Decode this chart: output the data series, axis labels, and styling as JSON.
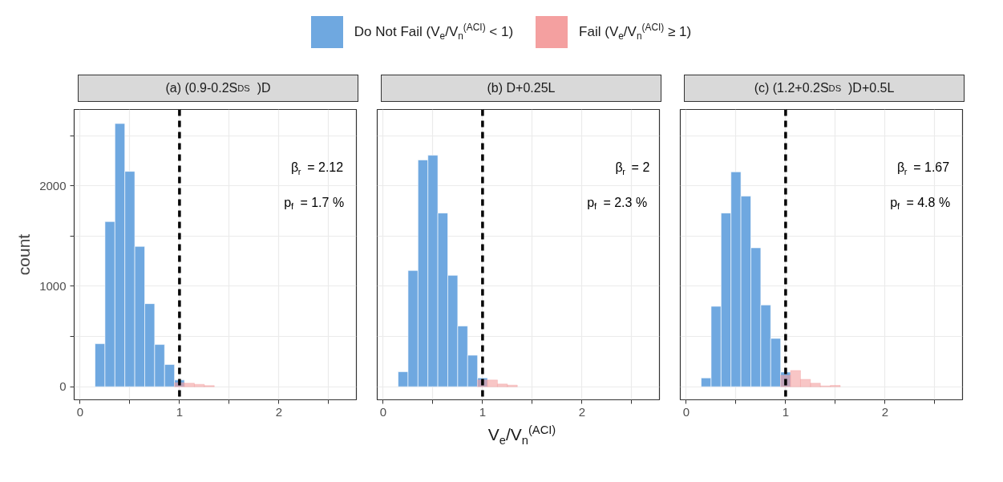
{
  "chart_data": [
    {
      "type": "histogram",
      "title": "(a) (0.9-0.2S$_{DS}$ )D",
      "ylabel": "count",
      "legend": "top",
      "bins": [
        0.15,
        0.25,
        0.35,
        0.45,
        0.55,
        0.65,
        0.75,
        0.85,
        0.95,
        1.05,
        1.15,
        1.25,
        1.35,
        1.45,
        1.55
      ],
      "series": [
        {
          "name": "Do Not Fail (V$_{e}$/V$_{n}$$^{(ACI)}$ < 1)",
          "color": "#6fa8e0",
          "values": [
            428,
            1644,
            2620,
            2144,
            1397,
            827,
            420,
            221,
            67,
            null,
            null,
            null,
            null,
            null
          ]
        },
        {
          "name": "Fail (V$_{e}$/V$_{n}$$^{(ACI)}$ ≥ 1)",
          "color": "#f4a0a0",
          "values": [
            null,
            null,
            null,
            null,
            null,
            null,
            null,
            null,
            40,
            35,
            24,
            11,
            null,
            null
          ]
        }
      ],
      "xlim": [
        -0.06,
        2.78
      ],
      "ylim": [
        -130,
        2760
      ],
      "xticks": [
        0,
        {
          "value": 0.5,
          "label": null
        },
        1,
        {
          "value": 1.5,
          "label": null
        },
        2,
        {
          "value": 2.5,
          "label": null
        }
      ],
      "yticks": [
        0,
        {
          "value": 500,
          "label": null
        },
        1000,
        {
          "value": 1500,
          "label": null
        },
        2000,
        {
          "value": 2500,
          "label": null
        }
      ],
      "grid": true,
      "ref_lines": [
        {
          "axis": "x",
          "value": 1,
          "color": "#000000",
          "line_style": "dashed"
        }
      ],
      "annotations": [
        "β$_{r}$ = 2.12",
        "p$_{f}$ = 1.7 %"
      ]
    },
    {
      "type": "histogram",
      "title": "(b) D+0.25L",
      "xlabel": "V$_{e}$/V$_{n}$$^{(ACI)}$",
      "tick_labels": "x",
      "bins": [
        0.15,
        0.25,
        0.35,
        0.45,
        0.55,
        0.65,
        0.75,
        0.85,
        0.95,
        1.05,
        1.15,
        1.25,
        1.35,
        1.45,
        1.55
      ],
      "series": [
        {
          "color": "#6fa8e0",
          "values": [
            149,
            1157,
            2258,
            2304,
            1729,
            1109,
            604,
            314,
            88,
            null,
            null,
            null,
            null,
            null
          ]
        },
        {
          "color": "#f4a0a0",
          "values": [
            null,
            null,
            null,
            null,
            null,
            null,
            null,
            null,
            67,
            67,
            27,
            16,
            null,
            null
          ]
        }
      ],
      "xlim": [
        -0.06,
        2.78
      ],
      "ylim": [
        -130,
        2760
      ],
      "xticks": [
        0,
        {
          "value": 0.5,
          "label": null
        },
        1,
        {
          "value": 1.5,
          "label": null
        },
        2,
        {
          "value": 2.5,
          "label": null
        }
      ],
      "yticks": [
        0,
        {
          "value": 500,
          "label": null
        },
        1000,
        {
          "value": 1500,
          "label": null
        },
        2000,
        {
          "value": 2500,
          "label": null
        }
      ],
      "grid": true,
      "ref_lines": [
        {
          "axis": "x",
          "value": 1,
          "color": "#000000",
          "line_style": "dashed"
        }
      ],
      "annotations": [
        "β$_{r}$ = 2",
        "p$_{f}$ = 2.3 %"
      ]
    },
    {
      "type": "histogram",
      "title": "(c) (1.2+0.2S$_{DS}$ )D+0.5L",
      "tick_labels": "x",
      "bins": [
        0.15,
        0.25,
        0.35,
        0.45,
        0.55,
        0.65,
        0.75,
        0.85,
        0.95,
        1.05,
        1.15,
        1.25,
        1.35,
        1.45,
        1.55
      ],
      "series": [
        {
          "color": "#6fa8e0",
          "values": [
            88,
            801,
            1729,
            2139,
            1897,
            1383,
            814,
            481,
            146,
            null,
            null,
            null,
            null,
            null
          ]
        },
        {
          "color": "#f4a0a0",
          "values": [
            null,
            null,
            null,
            null,
            null,
            null,
            null,
            null,
            114,
            162,
            74,
            35,
            8,
            13
          ]
        }
      ],
      "xlim": [
        -0.06,
        2.78
      ],
      "ylim": [
        -130,
        2760
      ],
      "xticks": [
        0,
        {
          "value": 0.5,
          "label": null
        },
        1,
        {
          "value": 1.5,
          "label": null
        },
        2,
        {
          "value": 2.5,
          "label": null
        }
      ],
      "yticks": [
        0,
        {
          "value": 500,
          "label": null
        },
        1000,
        {
          "value": 1500,
          "label": null
        },
        2000,
        {
          "value": 2500,
          "label": null
        }
      ],
      "grid": true,
      "ref_lines": [
        {
          "axis": "x",
          "value": 1,
          "color": "#000000",
          "line_style": "dashed"
        }
      ],
      "annotations": [
        "β$_{r}$ = 1.67",
        "p$_{f}$ = 4.8 %"
      ]
    }
  ]
}
